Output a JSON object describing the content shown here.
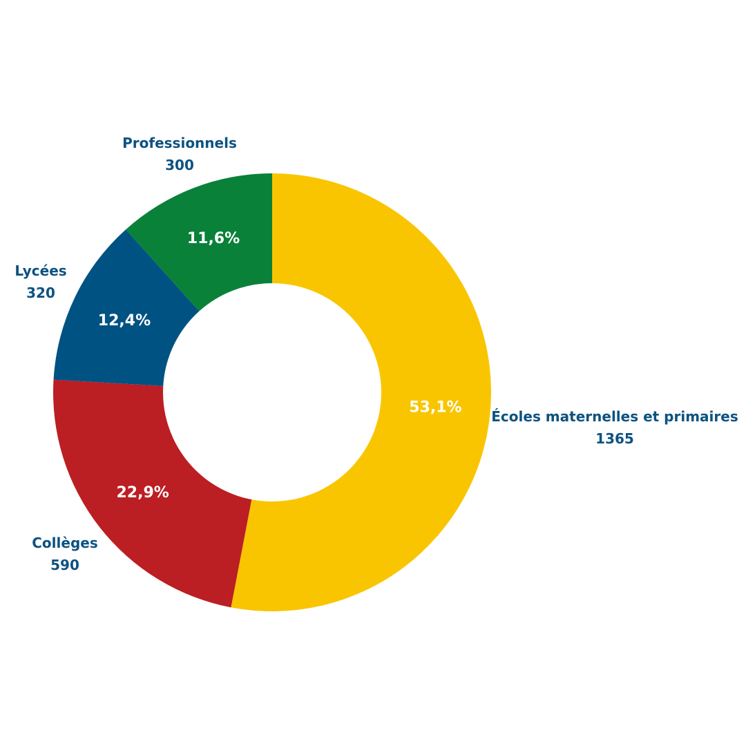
{
  "chart_data": {
    "type": "pie",
    "variant": "donut",
    "title": "",
    "slices": [
      {
        "label": "Écoles maternelles et primaires",
        "value": 1365,
        "percent_label": "53,1%",
        "color": "#f9c500"
      },
      {
        "label": "Collèges",
        "value": 590,
        "percent_label": "22,9%",
        "color": "#bb1e23"
      },
      {
        "label": "Lycées",
        "value": 320,
        "percent_label": "12,4%",
        "color": "#005283"
      },
      {
        "label": "Professionnels",
        "value": 300,
        "percent_label": "11,6%",
        "color": "#0a8139"
      }
    ],
    "start": "top",
    "direction": "clockwise",
    "label_color": "#0d5280",
    "legend": "none"
  }
}
